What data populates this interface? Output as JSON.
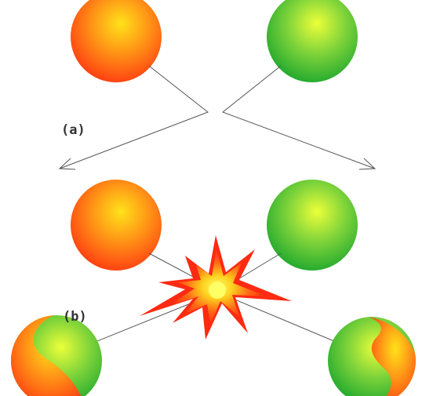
{
  "panels": [
    {
      "label": "(a)"
    },
    {
      "label": "(b)"
    }
  ],
  "colors": {
    "red_ball_core": "#ffe21a",
    "red_ball_edge": "#ff3c12",
    "green_ball_core": "#ecff3a",
    "green_ball_edge": "#1fa82e",
    "explosion_outer": "#ff2a12",
    "explosion_mid": "#ff8c1f",
    "explosion_core": "#ffff55",
    "line": "#555555"
  },
  "icons": {
    "red_ball": "orange-ball-icon",
    "green_ball": "green-ball-icon",
    "explosion": "explosion-burst-icon",
    "swirl_ball": "swirl-ball-icon"
  }
}
